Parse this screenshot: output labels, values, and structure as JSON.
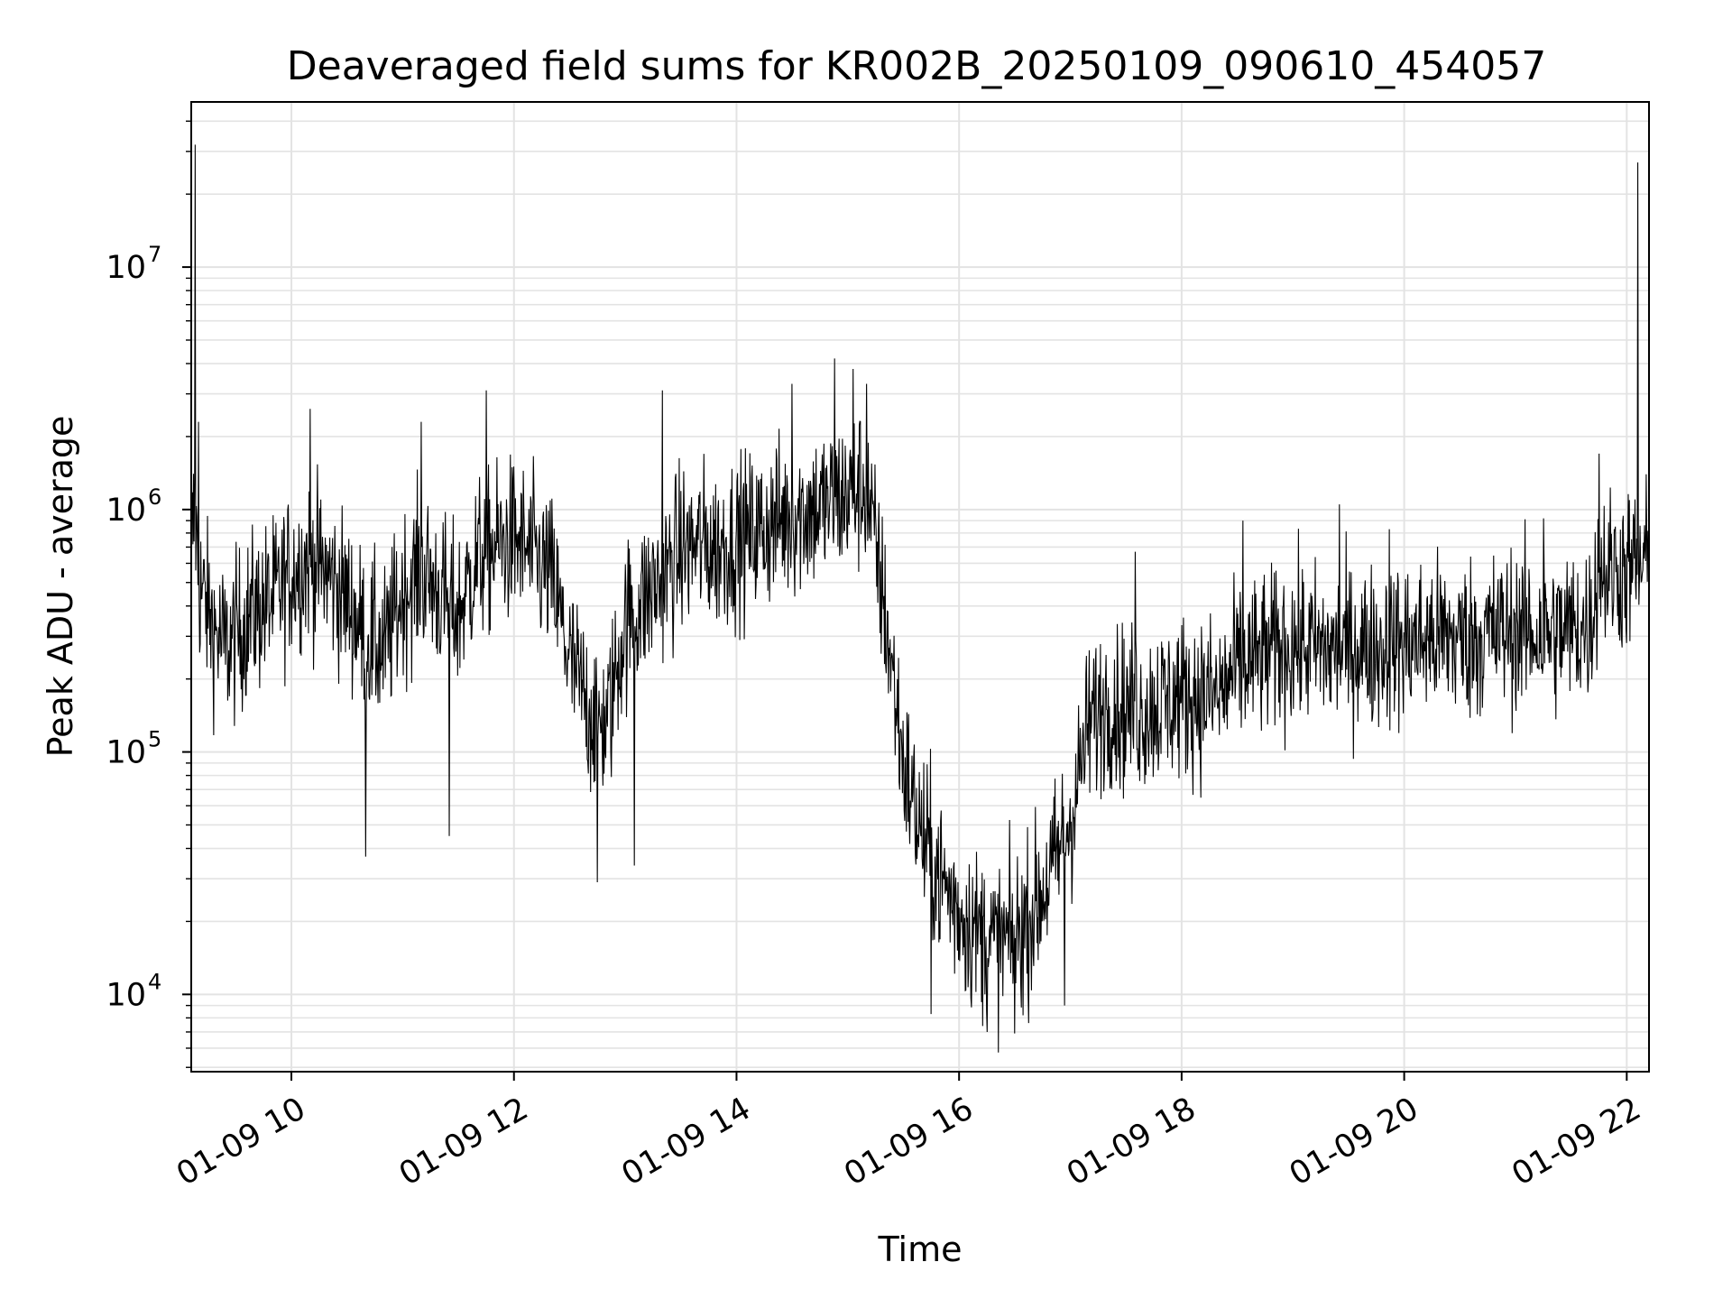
{
  "chart_data": {
    "type": "line",
    "title": "Deaveraged field sums for KR002B_20250109_090610_454057",
    "xlabel": "Time",
    "ylabel": "Peak ADU - average",
    "x_range": [
      "01-09 09:06",
      "01-09 22:12"
    ],
    "ylim": [
      4800,
      48000000
    ],
    "y_scale": "log",
    "grid": true,
    "line_color": "#000000",
    "x_ticks": [
      {
        "label": "01-09 10",
        "hour": 10
      },
      {
        "label": "01-09 12",
        "hour": 12
      },
      {
        "label": "01-09 14",
        "hour": 14
      },
      {
        "label": "01-09 16",
        "hour": 16
      },
      {
        "label": "01-09 18",
        "hour": 18
      },
      {
        "label": "01-09 20",
        "hour": 20
      },
      {
        "label": "01-09 22",
        "hour": 22
      }
    ],
    "y_ticks": [
      {
        "base": "10",
        "exp": "4",
        "value": 10000
      },
      {
        "base": "10",
        "exp": "5",
        "value": 100000
      },
      {
        "base": "10",
        "exp": "6",
        "value": 1000000
      },
      {
        "base": "10",
        "exp": "7",
        "value": 10000000
      }
    ],
    "series": [
      {
        "time": [
          "09:06",
          "09:08",
          "09:10",
          "09:15",
          "09:20",
          "09:25",
          "09:30",
          "09:40",
          "09:50",
          "10:00",
          "10:10",
          "10:20",
          "10:30",
          "10:40",
          "10:50",
          "11:00",
          "11:10",
          "11:20",
          "11:30",
          "11:40",
          "11:50",
          "12:00",
          "12:10",
          "12:20",
          "12:30",
          "12:40",
          "12:50",
          "13:00",
          "13:10",
          "13:20",
          "13:30",
          "13:40",
          "13:50",
          "14:00",
          "14:10",
          "14:20",
          "14:30",
          "14:40",
          "14:50",
          "15:00",
          "15:10",
          "15:20",
          "15:30",
          "15:40",
          "15:50",
          "16:00",
          "16:10",
          "16:20",
          "16:30",
          "16:40",
          "16:50",
          "17:00",
          "17:10",
          "17:20",
          "17:30",
          "17:40",
          "17:50",
          "18:00",
          "18:10",
          "18:20",
          "18:30",
          "18:40",
          "18:50",
          "19:00",
          "19:10",
          "19:20",
          "19:30",
          "19:40",
          "19:50",
          "20:00",
          "20:10",
          "20:20",
          "20:30",
          "20:40",
          "20:50",
          "21:00",
          "21:10",
          "21:20",
          "21:30",
          "21:40",
          "21:45",
          "21:50",
          "22:00",
          "22:10",
          "22:12"
        ],
        "median": [
          700000,
          1000000,
          500000,
          380000,
          300000,
          270000,
          300000,
          380000,
          420000,
          550000,
          620000,
          540000,
          420000,
          300000,
          260000,
          450000,
          560000,
          450000,
          370000,
          620000,
          700000,
          750000,
          640000,
          530000,
          240000,
          150000,
          130000,
          340000,
          420000,
          520000,
          680000,
          720000,
          690000,
          760000,
          800000,
          880000,
          950000,
          1000000,
          1050000,
          1150000,
          1250000,
          380000,
          90000,
          45000,
          30000,
          22000,
          18000,
          16000,
          17000,
          22000,
          32000,
          52000,
          130000,
          160000,
          150000,
          150000,
          160000,
          170000,
          170000,
          170000,
          220000,
          240000,
          260000,
          280000,
          270000,
          260000,
          270000,
          270000,
          270000,
          280000,
          290000,
          300000,
          290000,
          300000,
          310000,
          320000,
          310000,
          310000,
          320000,
          330000,
          580000,
          560000,
          560000,
          600000,
          580000
        ],
        "spikes": [
          {
            "time": "09:08",
            "value": 32000000
          },
          {
            "time": "09:10",
            "value": 2300000
          },
          {
            "time": "10:10",
            "value": 2600000
          },
          {
            "time": "10:40",
            "value": 37000
          },
          {
            "time": "11:10",
            "value": 2300000
          },
          {
            "time": "11:25",
            "value": 45000
          },
          {
            "time": "11:45",
            "value": 3100000
          },
          {
            "time": "12:45",
            "value": 29000
          },
          {
            "time": "13:05",
            "value": 34000
          },
          {
            "time": "13:20",
            "value": 3100000
          },
          {
            "time": "14:30",
            "value": 3300000
          },
          {
            "time": "14:53",
            "value": 4200000
          },
          {
            "time": "15:03",
            "value": 3800000
          },
          {
            "time": "15:10",
            "value": 3300000
          },
          {
            "time": "15:45",
            "value": 8300
          },
          {
            "time": "16:15",
            "value": 7000
          },
          {
            "time": "16:30",
            "value": 6900
          },
          {
            "time": "16:57",
            "value": 9000
          },
          {
            "time": "17:35",
            "value": 670000
          },
          {
            "time": "18:33",
            "value": 900000
          },
          {
            "time": "19:25",
            "value": 1050000
          },
          {
            "time": "19:52",
            "value": 830000
          },
          {
            "time": "21:15",
            "value": 920000
          },
          {
            "time": "21:45",
            "value": 1700000
          },
          {
            "time": "22:06",
            "value": 27000000
          }
        ]
      }
    ]
  }
}
